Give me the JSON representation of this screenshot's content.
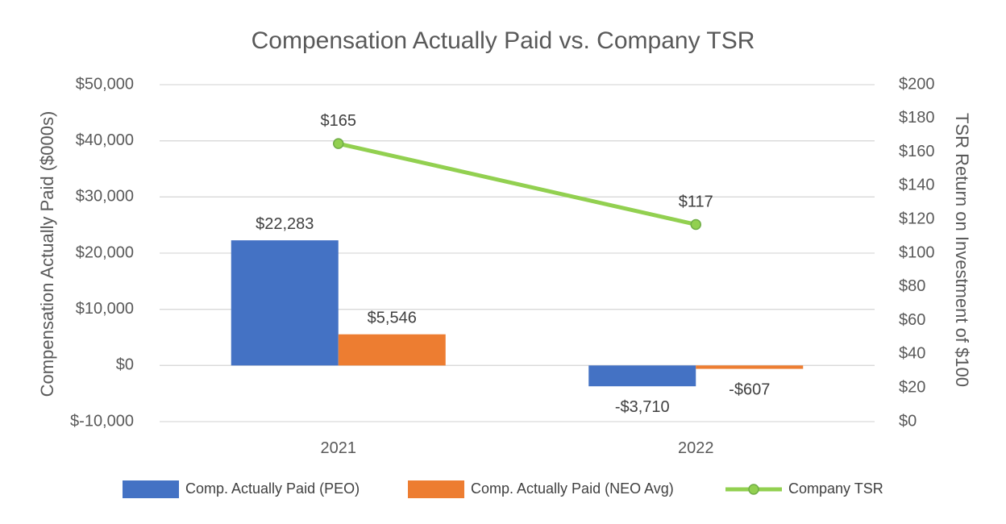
{
  "chart_data": {
    "type": "bar",
    "title": "Compensation Actually Paid vs. Company TSR",
    "categories": [
      "2021",
      "2022"
    ],
    "ylabel": "Compensation Actually Paid ($000s)",
    "y2label": "TSR Return on Investment of $100",
    "ylim": [
      -10000,
      50000
    ],
    "y2lim": [
      0,
      200
    ],
    "yticks": [
      50000,
      40000,
      30000,
      20000,
      10000,
      0,
      -10000
    ],
    "ytick_labels": [
      "$50,000",
      "$40,000",
      "$30,000",
      "$20,000",
      "$10,000",
      "$0",
      "$-10,000"
    ],
    "y2ticks": [
      200,
      180,
      160,
      140,
      120,
      100,
      80,
      60,
      40,
      20,
      0
    ],
    "y2tick_labels": [
      "$200",
      "$180",
      "$160",
      "$140",
      "$120",
      "$100",
      "$80",
      "$60",
      "$40",
      "$20",
      "$0"
    ],
    "grid": true,
    "legend_position": "bottom",
    "series": [
      {
        "name": "Comp. Actually Paid (PEO)",
        "kind": "bar",
        "axis": "left",
        "color": "#4472c4",
        "values": [
          22283,
          -3710
        ],
        "labels": [
          "$22,283",
          "-$3,710"
        ]
      },
      {
        "name": "Comp. Actually Paid (NEO Avg)",
        "kind": "bar",
        "axis": "left",
        "color": "#ed7d31",
        "values": [
          5546,
          -607
        ],
        "labels": [
          "$5,546",
          "-$607"
        ]
      },
      {
        "name": "Company TSR",
        "kind": "line",
        "axis": "right",
        "color": "#92d050",
        "values": [
          165,
          117
        ],
        "labels": [
          "$165",
          "$117"
        ]
      }
    ]
  }
}
